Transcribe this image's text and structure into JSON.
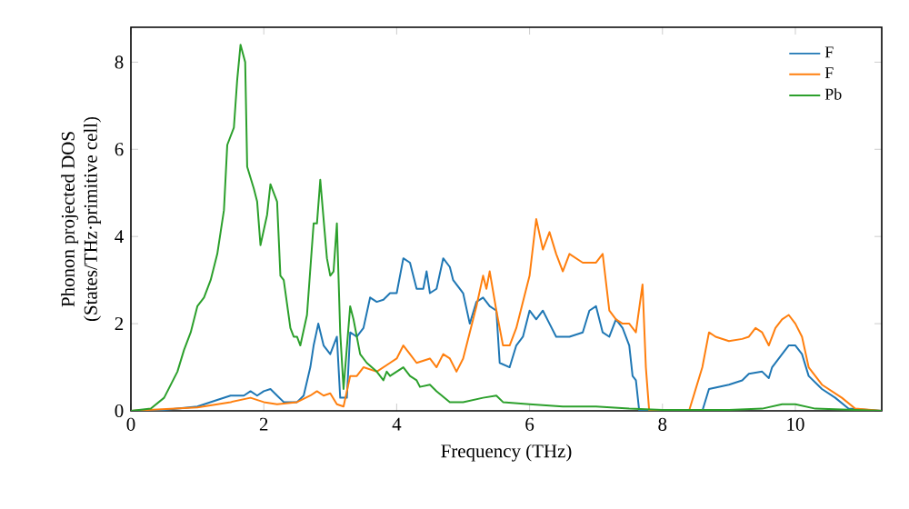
{
  "chart_data": {
    "type": "line",
    "xlabel": "Frequency (THz)",
    "ylabel": "Phonon projected DOS\n(States/THz·primitive cell)",
    "xlim": [
      0,
      11.3
    ],
    "ylim": [
      0,
      8.8
    ],
    "xticks": [
      0,
      2,
      4,
      6,
      8,
      10
    ],
    "yticks": [
      0,
      2,
      4,
      6,
      8
    ],
    "legend": "top right",
    "grid": false,
    "series": [
      {
        "name": "F",
        "color": "#1f77b4",
        "x": [
          0,
          0.5,
          1.0,
          1.3,
          1.5,
          1.7,
          1.8,
          1.9,
          2.0,
          2.1,
          2.2,
          2.3,
          2.5,
          2.6,
          2.7,
          2.75,
          2.82,
          2.9,
          3.0,
          3.1,
          3.15,
          3.25,
          3.3,
          3.4,
          3.5,
          3.6,
          3.7,
          3.8,
          3.9,
          4.0,
          4.1,
          4.2,
          4.3,
          4.4,
          4.45,
          4.5,
          4.6,
          4.7,
          4.8,
          4.85,
          5.0,
          5.1,
          5.2,
          5.3,
          5.4,
          5.5,
          5.55,
          5.7,
          5.8,
          5.9,
          6.0,
          6.1,
          6.2,
          6.3,
          6.4,
          6.6,
          6.8,
          6.9,
          7.0,
          7.1,
          7.2,
          7.3,
          7.4,
          7.5,
          7.55,
          7.6,
          7.65,
          8.6,
          8.7,
          9.0,
          9.2,
          9.3,
          9.5,
          9.6,
          9.65,
          9.8,
          9.9,
          10.0,
          10.1,
          10.2,
          10.4,
          10.6,
          10.8,
          11.3
        ],
        "values": [
          0,
          0.02,
          0.1,
          0.25,
          0.35,
          0.35,
          0.45,
          0.35,
          0.45,
          0.5,
          0.35,
          0.2,
          0.2,
          0.35,
          1.0,
          1.5,
          2.0,
          1.5,
          1.3,
          1.7,
          0.3,
          0.3,
          1.8,
          1.7,
          1.9,
          2.6,
          2.5,
          2.55,
          2.7,
          2.7,
          3.5,
          3.4,
          2.8,
          2.8,
          3.2,
          2.7,
          2.8,
          3.5,
          3.3,
          3.0,
          2.7,
          2.0,
          2.5,
          2.6,
          2.4,
          2.3,
          1.1,
          1.0,
          1.5,
          1.7,
          2.3,
          2.1,
          2.3,
          2.0,
          1.7,
          1.7,
          1.8,
          2.3,
          2.4,
          1.8,
          1.7,
          2.1,
          1.9,
          1.5,
          0.8,
          0.7,
          0,
          0,
          0.5,
          0.6,
          0.7,
          0.85,
          0.9,
          0.75,
          1.0,
          1.3,
          1.5,
          1.5,
          1.3,
          0.8,
          0.5,
          0.3,
          0.05,
          0
        ]
      },
      {
        "name": "F",
        "color": "#ff7f0e",
        "x": [
          0,
          1.0,
          1.5,
          1.8,
          2.0,
          2.2,
          2.5,
          2.7,
          2.8,
          2.9,
          3.0,
          3.1,
          3.2,
          3.3,
          3.4,
          3.5,
          3.7,
          3.8,
          3.9,
          4.0,
          4.1,
          4.2,
          4.3,
          4.5,
          4.6,
          4.7,
          4.8,
          4.9,
          5.0,
          5.1,
          5.2,
          5.3,
          5.35,
          5.4,
          5.5,
          5.6,
          5.7,
          5.8,
          6.0,
          6.1,
          6.2,
          6.3,
          6.4,
          6.5,
          6.6,
          6.8,
          7.0,
          7.1,
          7.2,
          7.3,
          7.4,
          7.5,
          7.6,
          7.7,
          7.75,
          7.8,
          8.4,
          8.6,
          8.7,
          8.8,
          9.0,
          9.2,
          9.3,
          9.4,
          9.5,
          9.6,
          9.7,
          9.8,
          9.9,
          10.0,
          10.1,
          10.2,
          10.4,
          10.7,
          10.9,
          11.3
        ],
        "values": [
          0,
          0.08,
          0.2,
          0.3,
          0.2,
          0.15,
          0.2,
          0.35,
          0.45,
          0.35,
          0.4,
          0.15,
          0.1,
          0.8,
          0.8,
          1.0,
          0.9,
          1.0,
          1.1,
          1.2,
          1.5,
          1.3,
          1.1,
          1.2,
          1.0,
          1.3,
          1.2,
          0.9,
          1.2,
          1.8,
          2.4,
          3.1,
          2.8,
          3.2,
          2.3,
          1.5,
          1.5,
          1.9,
          3.1,
          4.4,
          3.7,
          4.1,
          3.6,
          3.2,
          3.6,
          3.4,
          3.4,
          3.6,
          2.3,
          2.1,
          2.0,
          2.0,
          1.8,
          2.9,
          1.0,
          0,
          0,
          1.0,
          1.8,
          1.7,
          1.6,
          1.65,
          1.7,
          1.9,
          1.8,
          1.5,
          1.9,
          2.1,
          2.2,
          2.0,
          1.7,
          1.0,
          0.6,
          0.3,
          0.05,
          0
        ]
      },
      {
        "name": "Pb",
        "color": "#2ca02c",
        "x": [
          0,
          0.3,
          0.5,
          0.7,
          0.8,
          0.9,
          1.0,
          1.1,
          1.2,
          1.3,
          1.4,
          1.45,
          1.55,
          1.6,
          1.65,
          1.72,
          1.75,
          1.85,
          1.9,
          1.95,
          2.05,
          2.1,
          2.2,
          2.25,
          2.3,
          2.4,
          2.45,
          2.5,
          2.55,
          2.65,
          2.75,
          2.8,
          2.85,
          2.9,
          2.95,
          3.0,
          3.05,
          3.1,
          3.15,
          3.2,
          3.3,
          3.35,
          3.45,
          3.55,
          3.7,
          3.8,
          3.85,
          3.9,
          4.0,
          4.1,
          4.2,
          4.3,
          4.35,
          4.5,
          4.6,
          4.8,
          5.0,
          5.3,
          5.5,
          5.6,
          6.0,
          6.5,
          7.0,
          7.5,
          8.0,
          9.0,
          9.5,
          9.8,
          10.0,
          10.3,
          11.3
        ],
        "values": [
          0,
          0.05,
          0.3,
          0.9,
          1.4,
          1.8,
          2.4,
          2.6,
          3.0,
          3.6,
          4.6,
          6.1,
          6.5,
          7.6,
          8.4,
          8.0,
          5.6,
          5.1,
          4.8,
          3.8,
          4.5,
          5.2,
          4.8,
          3.1,
          3.0,
          1.9,
          1.7,
          1.7,
          1.5,
          2.2,
          4.3,
          4.3,
          5.3,
          4.4,
          3.5,
          3.1,
          3.2,
          4.3,
          1.8,
          0.5,
          2.4,
          2.1,
          1.3,
          1.1,
          0.9,
          0.7,
          0.9,
          0.8,
          0.9,
          1.0,
          0.8,
          0.7,
          0.55,
          0.6,
          0.45,
          0.2,
          0.2,
          0.3,
          0.35,
          0.2,
          0.15,
          0.1,
          0.1,
          0.05,
          0.02,
          0.02,
          0.05,
          0.15,
          0.15,
          0.05,
          0
        ]
      }
    ]
  }
}
